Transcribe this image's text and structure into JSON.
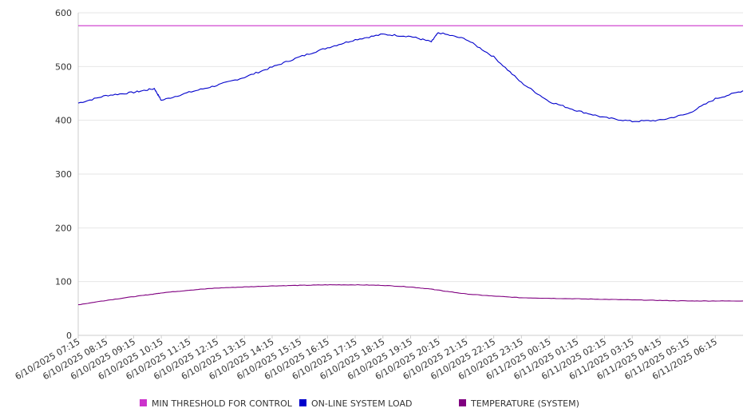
{
  "chart_data": {
    "type": "line",
    "ylim": [
      0,
      600
    ],
    "y_ticks": [
      0,
      100,
      200,
      300,
      400,
      500,
      600
    ],
    "grid": true,
    "legend_position": "bottom",
    "x_tick_labels": [
      "6/10/2025 07:15",
      "6/10/2025 08:15",
      "6/10/2025 09:15",
      "6/10/2025 10:15",
      "6/10/2025 11:15",
      "6/10/2025 12:15",
      "6/10/2025 13:15",
      "6/10/2025 14:15",
      "6/10/2025 15:15",
      "6/10/2025 16:15",
      "6/10/2025 17:15",
      "6/10/2025 18:15",
      "6/10/2025 19:15",
      "6/10/2025 20:15",
      "6/10/2025 21:15",
      "6/10/2025 22:15",
      "6/10/2025 23:15",
      "6/11/2025 00:15",
      "6/11/2025 01:15",
      "6/11/2025 02:15",
      "6/11/2025 03:15",
      "6/11/2025 04:15",
      "6/11/2025 05:15",
      "6/11/2025 06:15"
    ],
    "x": [
      "6/10/2025 07:15",
      "6/10/2025 08:15",
      "6/10/2025 09:15",
      "6/10/2025 10:00",
      "6/10/2025 10:15",
      "6/10/2025 11:15",
      "6/10/2025 12:15",
      "6/10/2025 13:15",
      "6/10/2025 14:15",
      "6/10/2025 15:15",
      "6/10/2025 16:15",
      "6/10/2025 17:15",
      "6/10/2025 18:15",
      "6/10/2025 19:15",
      "6/10/2025 20:00",
      "6/10/2025 20:15",
      "6/10/2025 21:15",
      "6/10/2025 22:15",
      "6/10/2025 23:15",
      "6/11/2025 00:15",
      "6/11/2025 01:15",
      "6/11/2025 02:15",
      "6/11/2025 03:15",
      "6/11/2025 04:15",
      "6/11/2025 05:15",
      "6/11/2025 06:15",
      "6/11/2025 07:15"
    ],
    "series": [
      {
        "name": "MIN THRESHOLD FOR CONTROL",
        "color": "#cc33cc",
        "values": [
          576,
          576,
          576,
          576,
          576,
          576,
          576,
          576,
          576,
          576,
          576,
          576,
          576,
          576,
          576,
          576,
          576,
          576,
          576,
          576,
          576,
          576,
          576,
          576,
          576,
          576,
          576
        ]
      },
      {
        "name": "ON-LINE SYSTEM LOAD",
        "color": "#0000cc",
        "values": [
          432,
          446,
          452,
          459,
          437,
          452,
          465,
          480,
          499,
          518,
          535,
          550,
          560,
          556,
          546,
          563,
          551,
          518,
          470,
          435,
          418,
          405,
          398,
          400,
          412,
          440,
          455
        ]
      },
      {
        "name": "TEMPERATURE (SYSTEM)",
        "color": "#800080",
        "values": [
          57,
          65,
          72,
          77,
          79,
          84,
          88,
          90,
          92,
          93,
          94,
          94,
          93,
          90,
          86,
          84,
          77,
          73,
          70,
          69,
          68,
          67,
          66,
          65,
          64,
          64,
          64
        ]
      }
    ]
  }
}
